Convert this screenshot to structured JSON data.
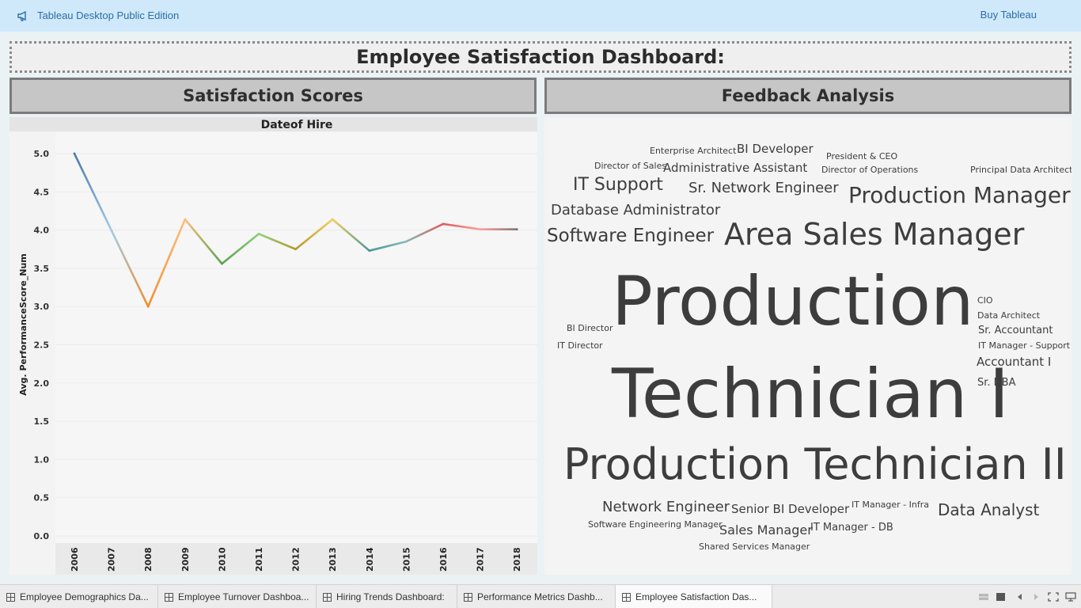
{
  "topbar": {
    "app_title": "Tableau Desktop Public Edition",
    "buy_label": "Buy Tableau",
    "icon": "megaphone-icon"
  },
  "dashboard": {
    "title": "Employee Satisfaction Dashboard:",
    "left_panel_title": "Satisfaction Scores",
    "right_panel_title": "Feedback Analysis"
  },
  "chart_data": {
    "type": "line",
    "title": "Dateof Hire",
    "xlabel": "",
    "ylabel": "Avg. PerformanceScore_Num",
    "categories": [
      "2006",
      "2007",
      "2008",
      "2009",
      "2010",
      "2011",
      "2012",
      "2013",
      "2014",
      "2015",
      "2016",
      "2017",
      "2018"
    ],
    "values": [
      5.0,
      4.0,
      3.0,
      4.14,
      3.56,
      3.95,
      3.75,
      4.14,
      3.73,
      3.85,
      4.08,
      4.01,
      4.01
    ],
    "y_ticks": [
      "0.0",
      "0.5",
      "1.0",
      "1.5",
      "2.0",
      "2.5",
      "3.0",
      "3.5",
      "4.0",
      "4.5",
      "5.0"
    ],
    "ylim": [
      0,
      5.17
    ],
    "grid": true,
    "legend": "none",
    "colors": [
      "#4e79a7",
      "#a0cbe8",
      "#f28e2b",
      "#ffbe7d",
      "#59a14f",
      "#8cd17d",
      "#b6992d",
      "#f1ce63",
      "#499894",
      "#86bcb6",
      "#e15759",
      "#ff9d9a",
      "#79706e"
    ]
  },
  "word_cloud": {
    "color": "#3d3d3d",
    "words": [
      {
        "text": "Enterprise Architect"
      },
      {
        "text": "BI Developer"
      },
      {
        "text": "President & CEO"
      },
      {
        "text": "Director of Sales"
      },
      {
        "text": "Administrative Assistant"
      },
      {
        "text": "Director of Operations"
      },
      {
        "text": "Principal Data Architect"
      },
      {
        "text": "IT Support"
      },
      {
        "text": "Sr. Network Engineer"
      },
      {
        "text": "Production Manager"
      },
      {
        "text": "Database Administrator"
      },
      {
        "text": "Software Engineer"
      },
      {
        "text": "Area Sales Manager"
      },
      {
        "text": "Production"
      },
      {
        "text": "Technician I"
      },
      {
        "text": "CIO"
      },
      {
        "text": "Data Architect"
      },
      {
        "text": "BI Director"
      },
      {
        "text": "Sr. Accountant"
      },
      {
        "text": "IT Director"
      },
      {
        "text": "IT Manager - Support"
      },
      {
        "text": "Accountant I"
      },
      {
        "text": "Sr. DBA"
      },
      {
        "text": "Production Technician II"
      },
      {
        "text": "Network Engineer"
      },
      {
        "text": "Senior BI Developer"
      },
      {
        "text": "IT Manager - Infra"
      },
      {
        "text": "Data Analyst"
      },
      {
        "text": "Software Engineering Manager"
      },
      {
        "text": "Sales Manager"
      },
      {
        "text": "IT Manager - DB"
      },
      {
        "text": "Shared Services Manager"
      }
    ]
  },
  "tabs": [
    {
      "label": "Employee Demographics Da..."
    },
    {
      "label": "Employee Turnover Dashboa..."
    },
    {
      "label": "Hiring Trends Dashboard:"
    },
    {
      "label": "Performance Metrics Dashb..."
    },
    {
      "label": "Employee Satisfaction Das..."
    }
  ],
  "active_tab": "Employee Satisfaction Das..."
}
